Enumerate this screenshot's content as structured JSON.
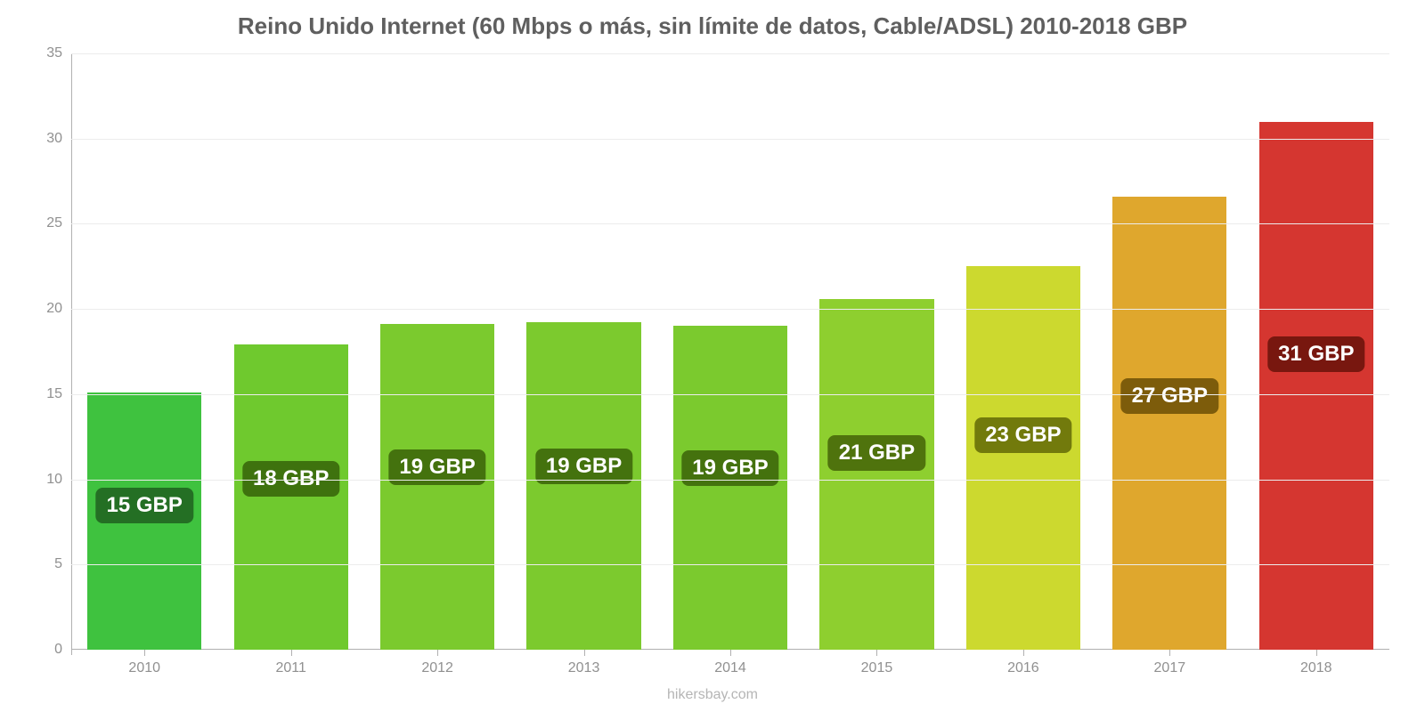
{
  "chart": {
    "type": "bar",
    "title": "Reino Unido Internet (60 Mbps o más, sin límite de datos, Cable/ADSL) 2010-2018 GBP",
    "title_fontsize": 26,
    "title_color": "#5f5f5f",
    "source": "hikersbay.com",
    "background_color": "#ffffff",
    "grid_color": "#ececec",
    "axis_color": "#b0b0b0",
    "tick_label_color": "#909090",
    "tick_label_fontsize": 16,
    "ylim": [
      0,
      35
    ],
    "ytick_step": 5,
    "categories": [
      "2010",
      "2011",
      "2012",
      "2013",
      "2014",
      "2015",
      "2016",
      "2017",
      "2018"
    ],
    "values": [
      15.1,
      17.9,
      19.1,
      19.2,
      19.0,
      20.6,
      22.5,
      26.6,
      31.0
    ],
    "bar_colors": [
      "#3fc23f",
      "#6fc92e",
      "#7bca2e",
      "#7cca2e",
      "#7bca2e",
      "#8ecf2f",
      "#ccd92f",
      "#dfa72d",
      "#d53630"
    ],
    "bar_labels": [
      "15 GBP",
      "18 GBP",
      "19 GBP",
      "19 GBP",
      "19 GBP",
      "21 GBP",
      "23 GBP",
      "27 GBP",
      "31 GBP"
    ],
    "bar_label_bg": [
      "#246f24",
      "#3e720e",
      "#44720e",
      "#44720e",
      "#44720e",
      "#4f730d",
      "#727a0c",
      "#7d5c0b",
      "#78170f"
    ],
    "bar_label_fontsize": 24,
    "bar_label_color": "#ffffff",
    "bar_width_ratio": 0.78
  }
}
